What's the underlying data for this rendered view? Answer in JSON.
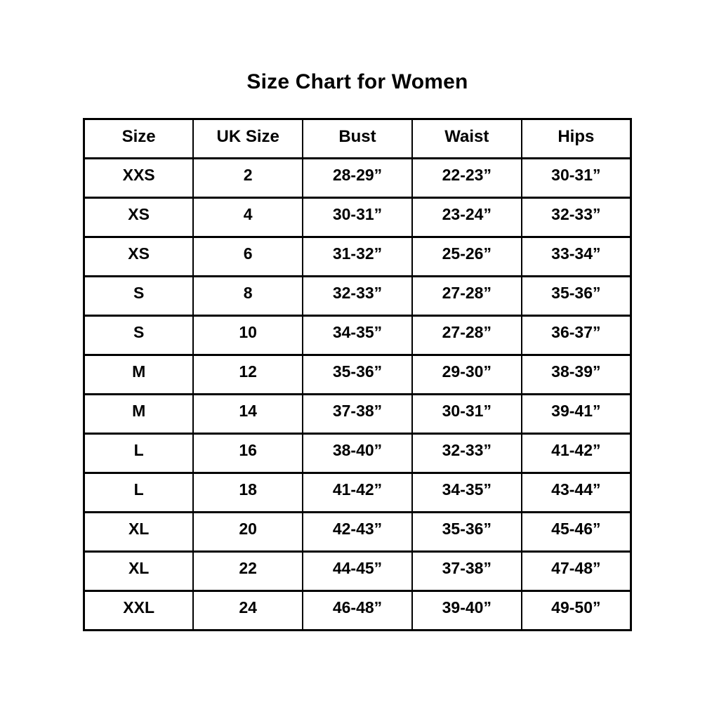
{
  "chart_data": {
    "type": "table",
    "title": "Size Chart for Women",
    "columns": [
      "Size",
      "UK Size",
      "Bust",
      "Waist",
      "Hips"
    ],
    "rows": [
      [
        "XXS",
        "2",
        "28-29”",
        "22-23”",
        "30-31”"
      ],
      [
        "XS",
        "4",
        "30-31”",
        "23-24”",
        "32-33”"
      ],
      [
        "XS",
        "6",
        "31-32”",
        "25-26”",
        "33-34”"
      ],
      [
        "S",
        "8",
        "32-33”",
        "27-28”",
        "35-36”"
      ],
      [
        "S",
        "10",
        "34-35”",
        "27-28”",
        "36-37”"
      ],
      [
        "M",
        "12",
        "35-36”",
        "29-30”",
        "38-39”"
      ],
      [
        "M",
        "14",
        "37-38”",
        "30-31”",
        "39-41”"
      ],
      [
        "L",
        "16",
        "38-40”",
        "32-33”",
        "41-42”"
      ],
      [
        "L",
        "18",
        "41-42”",
        "34-35”",
        "43-44”"
      ],
      [
        "XL",
        "20",
        "42-43”",
        "35-36”",
        "45-46”"
      ],
      [
        "XL",
        "22",
        "44-45”",
        "37-38”",
        "47-48”"
      ],
      [
        "XXL",
        "24",
        "46-48”",
        "39-40”",
        "49-50”"
      ]
    ],
    "layout": {
      "grid": true,
      "border_color": "#000000",
      "text_color": "#000000",
      "background_color": "#ffffff"
    }
  }
}
